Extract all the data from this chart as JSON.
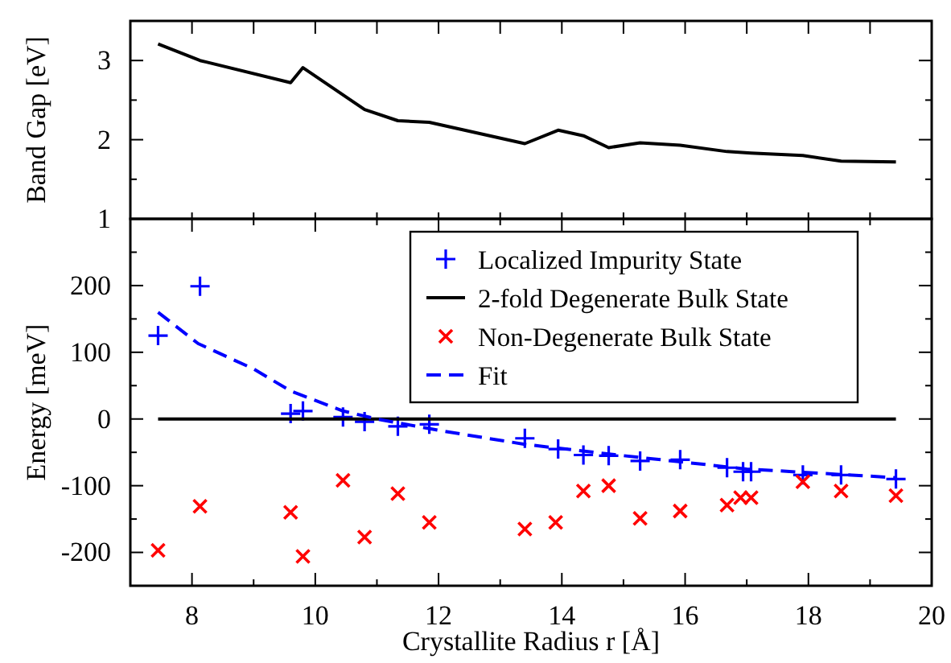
{
  "chart_data": [
    {
      "type": "line",
      "ylabel": "Band Gap [eV]",
      "x": [
        7.45,
        8.13,
        9.6,
        9.8,
        10.8,
        11.34,
        11.85,
        13.4,
        13.94,
        14.35,
        14.76,
        15.27,
        15.92,
        16.68,
        17.07,
        17.91,
        18.53,
        19.42
      ],
      "series": [
        {
          "color": "#000000",
          "values": [
            3.21,
            3.0,
            2.72,
            2.91,
            2.38,
            2.24,
            2.22,
            1.95,
            2.12,
            2.05,
            1.9,
            1.96,
            1.93,
            1.85,
            1.83,
            1.8,
            1.73,
            1.72
          ]
        }
      ],
      "xlim": [
        7,
        20
      ],
      "xticks": [
        {
          "value": 8,
          "label": null
        },
        {
          "value": 9,
          "label": null
        },
        {
          "value": 10,
          "label": null
        },
        {
          "value": 11,
          "label": null
        },
        {
          "value": 12,
          "label": null
        },
        {
          "value": 13,
          "label": null
        },
        {
          "value": 14,
          "label": null
        },
        {
          "value": 15,
          "label": null
        },
        {
          "value": 16,
          "label": null
        },
        {
          "value": 17,
          "label": null
        },
        {
          "value": 18,
          "label": null
        },
        {
          "value": 19,
          "label": null
        }
      ],
      "ylim": [
        1,
        3.5
      ],
      "yticks": [
        1,
        {
          "value": 1.5,
          "label": null
        },
        2,
        {
          "value": 2.5,
          "label": null
        },
        3
      ],
      "tick_labels": "y",
      "grid": false,
      "legend": false,
      "marker": "none",
      "line_style": "solid"
    },
    {
      "type": "scatter",
      "xlabel": "Crystallite Radius r [Å]",
      "ylabel": "Energy [meV]",
      "series": [
        {
          "name": "Localized Impurity State",
          "marker": "plus",
          "color": "#0000ff",
          "x": [
            7.45,
            8.13,
            9.6,
            9.8,
            10.45,
            10.8,
            11.34,
            11.85,
            13.4,
            13.94,
            14.35,
            14.76,
            15.27,
            15.92,
            16.68,
            16.94,
            17.07,
            17.91,
            18.53,
            19.42
          ],
          "values": [
            125,
            199,
            8,
            12,
            3,
            -4,
            -11,
            -8,
            -29,
            -45,
            -54,
            -55,
            -63,
            -61,
            -73,
            -79,
            -79,
            -84,
            -84,
            -90
          ]
        },
        {
          "name": "2-fold Degenerate Bulk State",
          "type": "line",
          "line_style": "solid",
          "color": "#000000",
          "x": [
            7.45,
            19.42
          ],
          "values": [
            0,
            0
          ]
        },
        {
          "name": "Non-Degenerate Bulk State",
          "marker": "cross",
          "color": "#ff0000",
          "x": [
            7.45,
            8.13,
            9.6,
            9.8,
            10.45,
            10.8,
            11.34,
            11.85,
            13.4,
            13.9,
            14.35,
            14.76,
            15.27,
            15.92,
            16.68,
            16.9,
            17.07,
            17.91,
            18.53,
            19.42
          ],
          "values": [
            -197,
            -131,
            -140,
            -206,
            -92,
            -177,
            -112,
            -155,
            -165,
            -155,
            -108,
            -100,
            -149,
            -138,
            -129,
            -118,
            -118,
            -94,
            -108,
            -115
          ]
        },
        {
          "name": "Fit",
          "type": "line",
          "line_style": "dashed",
          "color": "#0000ff",
          "x": [
            7.45,
            8.1,
            9,
            9.6,
            10.45,
            11,
            12,
            13.4,
            15,
            17,
            19.42
          ],
          "values": [
            160,
            113,
            75,
            42,
            12,
            0,
            -17,
            -38,
            -55,
            -75,
            -88
          ]
        }
      ],
      "xlim": [
        7,
        20
      ],
      "xticks": [
        8,
        {
          "value": 9,
          "label": null
        },
        10,
        {
          "value": 11,
          "label": null
        },
        12,
        {
          "value": 13,
          "label": null
        },
        14,
        {
          "value": 15,
          "label": null
        },
        16,
        {
          "value": 17,
          "label": null
        },
        18,
        {
          "value": 19,
          "label": null
        },
        20
      ],
      "ylim": [
        -250,
        300
      ],
      "yticks": [
        {
          "value": -250,
          "label": null
        },
        -200,
        {
          "value": -150,
          "label": null
        },
        -100,
        {
          "value": -50,
          "label": null
        },
        0,
        {
          "value": 50,
          "label": null
        },
        100,
        {
          "value": 150,
          "label": null
        },
        200,
        {
          "value": 250,
          "label": null
        }
      ],
      "grid": false,
      "legend": "top right"
    }
  ]
}
